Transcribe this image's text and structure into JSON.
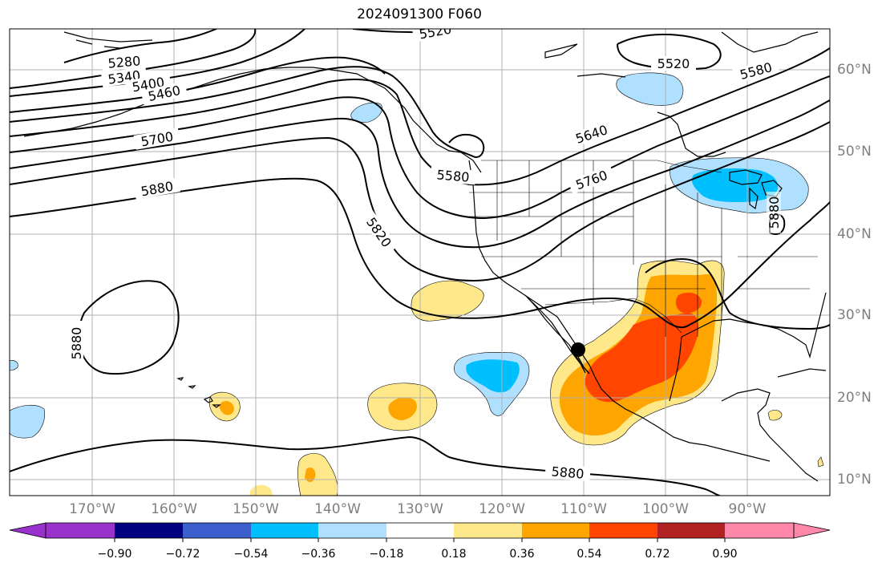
{
  "title": "2024091300 F060",
  "map": {
    "lon_labels": [
      "170°W",
      "160°W",
      "150°W",
      "140°W",
      "130°W",
      "120°W",
      "110°W",
      "100°W",
      "90°W"
    ],
    "lat_labels": [
      "60°N",
      "50°N",
      "40°N",
      "30°N",
      "20°N",
      "10°N"
    ],
    "contour_labels": [
      {
        "text": "5280",
        "rot": -5
      },
      {
        "text": "5340",
        "rot": -8
      },
      {
        "text": "5400",
        "rot": -10
      },
      {
        "text": "5460",
        "rot": -12
      },
      {
        "text": "5520",
        "rot": -10
      },
      {
        "text": "5520",
        "rot": 0
      },
      {
        "text": "5580",
        "rot": -15
      },
      {
        "text": "5580",
        "rot": 5
      },
      {
        "text": "5640",
        "rot": -18
      },
      {
        "text": "5700",
        "rot": -10
      },
      {
        "text": "5760",
        "rot": -20
      },
      {
        "text": "5820",
        "rot": 55
      },
      {
        "text": "5880",
        "rot": -10
      },
      {
        "text": "5880",
        "rot": -90
      },
      {
        "text": "5880",
        "rot": 5
      },
      {
        "text": "5880",
        "rot": -90
      }
    ],
    "colors": {
      "grid": "#b0b0b0",
      "contour": "#000000",
      "coast": "#000000"
    }
  },
  "colorbar": {
    "ticks": [
      "−0.90",
      "−0.72",
      "−0.54",
      "−0.36",
      "−0.18",
      "0.18",
      "0.36",
      "0.54",
      "0.72",
      "0.90"
    ],
    "colors": [
      "#9932cc",
      "#000080",
      "#3a5fcd",
      "#00bfff",
      "#b0e0ff",
      "#ffffff",
      "#ffe88a",
      "#ffa500",
      "#ff4500",
      "#b22222",
      "#ff88aa"
    ]
  }
}
